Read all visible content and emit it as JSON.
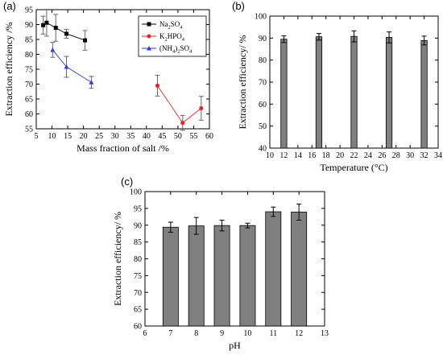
{
  "chart_data": [
    {
      "panel": "(a)",
      "type": "scatter",
      "xlabel": "Mass fraction of salt /%",
      "ylabel": "Extraction efficiency /%",
      "xlim": [
        5,
        60
      ],
      "ylim": [
        55,
        95
      ],
      "xticks": [
        5,
        10,
        15,
        20,
        25,
        30,
        35,
        40,
        45,
        50,
        55,
        60
      ],
      "yticks": [
        55,
        60,
        65,
        70,
        75,
        80,
        85,
        90,
        95
      ],
      "legend_position": "top-right",
      "series": [
        {
          "name": "Na2SO4",
          "legend_main": "Na",
          "legend_sub": "2",
          "legend_main2": "SO",
          "legend_sub2": "4",
          "color": "#000000",
          "marker": "square",
          "x": [
            7.2,
            8.3,
            11.2,
            14.6,
            20.5
          ],
          "y": [
            89.8,
            90.6,
            88.9,
            86.9,
            84.7
          ],
          "err": [
            3.0,
            4.5,
            4.5,
            1.5,
            3.3
          ]
        },
        {
          "name": "K2HPO4",
          "legend_main": "K",
          "legend_sub": "2",
          "legend_main2": "HPO",
          "legend_sub2": "4",
          "color": "#e8242b",
          "marker": "circle",
          "x": [
            43.5,
            51.5,
            57.4
          ],
          "y": [
            69.5,
            57.0,
            61.9
          ],
          "err": [
            3.5,
            2.5,
            4.0
          ]
        },
        {
          "name": "(NH4)2SO4",
          "legend_main": "(NH",
          "legend_sub": "4",
          "legend_main2": ")",
          "legend_sub2": "2",
          "legend_main3": "SO",
          "legend_sub3": "4",
          "color": "#2f3de0",
          "marker": "triangle",
          "x": [
            10.2,
            14.6,
            22.5
          ],
          "y": [
            81.5,
            75.8,
            70.6
          ],
          "err": [
            2.5,
            3.5,
            2.0
          ]
        }
      ]
    },
    {
      "panel": "(b)",
      "type": "bar",
      "xlabel": "Temperature (°C)",
      "ylabel": "Extraction efficiency/ %",
      "xlim": [
        10,
        34
      ],
      "ylim": [
        40,
        100
      ],
      "xticks": [
        10,
        12,
        14,
        16,
        18,
        20,
        22,
        24,
        26,
        28,
        30,
        32,
        34
      ],
      "yticks": [
        40,
        50,
        60,
        70,
        80,
        90,
        100
      ],
      "x": [
        12,
        17,
        22,
        27,
        32
      ],
      "values": [
        89.5,
        90.6,
        90.8,
        90.3,
        88.9
      ],
      "err": [
        1.5,
        1.5,
        2.5,
        2.5,
        2.0
      ],
      "bar_color": "#808080"
    },
    {
      "panel": "(c)",
      "type": "bar",
      "xlabel": "pH",
      "ylabel": "Extraction efficiency/ %",
      "xlim": [
        6,
        13
      ],
      "ylim": [
        60,
        100
      ],
      "xticks": [
        6,
        7,
        8,
        9,
        10,
        11,
        12,
        13
      ],
      "yticks": [
        60,
        65,
        70,
        75,
        80,
        85,
        90,
        95,
        100
      ],
      "x": [
        7,
        8,
        9,
        10,
        11,
        12
      ],
      "values": [
        89.4,
        89.8,
        89.9,
        89.9,
        94.0,
        93.9
      ],
      "err": [
        1.5,
        2.5,
        1.6,
        0.7,
        1.4,
        2.4
      ],
      "bar_color": "#808080"
    }
  ]
}
